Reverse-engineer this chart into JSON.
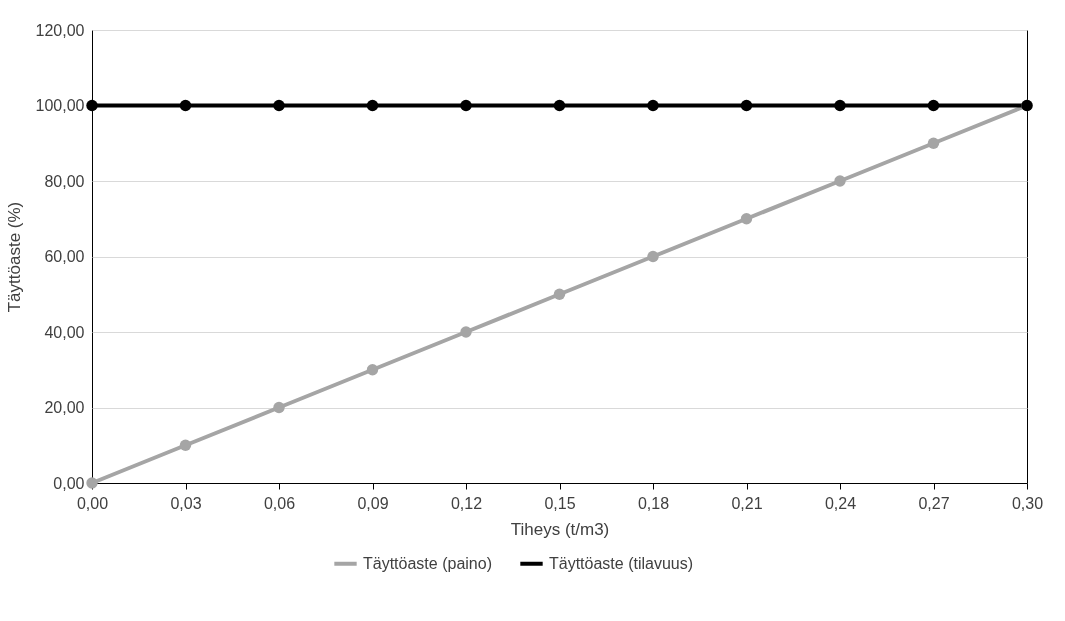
{
  "chart_data": {
    "type": "line",
    "xlabel": "Tiheys (t/m3)",
    "ylabel": "Täyttöaste (%)",
    "x": [
      0,
      0.03,
      0.06,
      0.09,
      0.12,
      0.15,
      0.18,
      0.21,
      0.24,
      0.27,
      0.3
    ],
    "series": [
      {
        "name": "Täyttöaste (paino)",
        "color": "#a5a5a5",
        "values": [
          0,
          10,
          20,
          30,
          40,
          50,
          60,
          70,
          80,
          90,
          100
        ]
      },
      {
        "name": "Täyttöaste (tilavuus)",
        "color": "#000000",
        "values": [
          100,
          100,
          100,
          100,
          100,
          100,
          100,
          100,
          100,
          100,
          100
        ]
      }
    ],
    "xlim": [
      0,
      0.3
    ],
    "xticks": [
      {
        "value": 0,
        "label": "0,00"
      },
      {
        "value": 0.03,
        "label": "0,03"
      },
      {
        "value": 0.06,
        "label": "0,06"
      },
      {
        "value": 0.09,
        "label": "0,09"
      },
      {
        "value": 0.12,
        "label": "0,12"
      },
      {
        "value": 0.15,
        "label": "0,15"
      },
      {
        "value": 0.18,
        "label": "0,18"
      },
      {
        "value": 0.21,
        "label": "0,21"
      },
      {
        "value": 0.24,
        "label": "0,24"
      },
      {
        "value": 0.27,
        "label": "0,27"
      },
      {
        "value": 0.3,
        "label": "0,30"
      }
    ],
    "ylim": [
      0,
      120
    ],
    "yticks": [
      {
        "value": 0,
        "label": "0,00"
      },
      {
        "value": 20,
        "label": "20,00"
      },
      {
        "value": 40,
        "label": "40,00"
      },
      {
        "value": 60,
        "label": "60,00"
      },
      {
        "value": 80,
        "label": "80,00"
      },
      {
        "value": 100,
        "label": "100,00"
      },
      {
        "value": 120,
        "label": "120,00"
      }
    ],
    "grid": "y",
    "legend": "bottom",
    "marker": "circle",
    "line_style": "solid"
  }
}
